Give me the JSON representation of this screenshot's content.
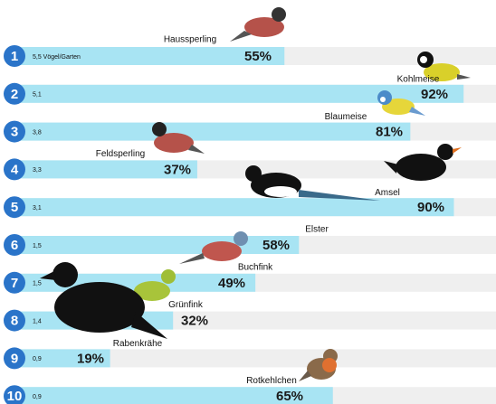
{
  "chart_data": {
    "type": "bar",
    "categories": [
      "Haussperling",
      "Kohlmeise",
      "Blaumeise",
      "Feldsperling",
      "Amsel",
      "Elster",
      "Buchfink",
      "Grünfink",
      "Rabenkrähe",
      "Rotkehlchen"
    ],
    "values": [
      55,
      92,
      81,
      37,
      90,
      58,
      49,
      32,
      19,
      65
    ],
    "value_labels": [
      "55%",
      "92%",
      "81%",
      "37%",
      "90%",
      "58%",
      "49%",
      "32%",
      "19%",
      "65%"
    ],
    "ranks": [
      1,
      2,
      3,
      4,
      5,
      6,
      7,
      8,
      9,
      10
    ],
    "counts": [
      {
        "value": 5.5,
        "label": "5,5 Vögel/Garten"
      },
      {
        "value": 5.1,
        "label": "5,1"
      },
      {
        "value": 3.8,
        "label": "3,8"
      },
      {
        "value": 3.3,
        "label": "3,3"
      },
      {
        "value": 3.1,
        "label": "3,1"
      },
      {
        "value": 1.5,
        "label": "1,5"
      },
      {
        "value": 1.5,
        "label": "1,5"
      },
      {
        "value": 1.4,
        "label": "1,4"
      },
      {
        "value": 0.9,
        "label": "0,9"
      },
      {
        "value": 0.9,
        "label": "0,9"
      }
    ],
    "color": "#a8e4f3",
    "badge_color": "#2a74c9",
    "track_color": "#efefef"
  }
}
